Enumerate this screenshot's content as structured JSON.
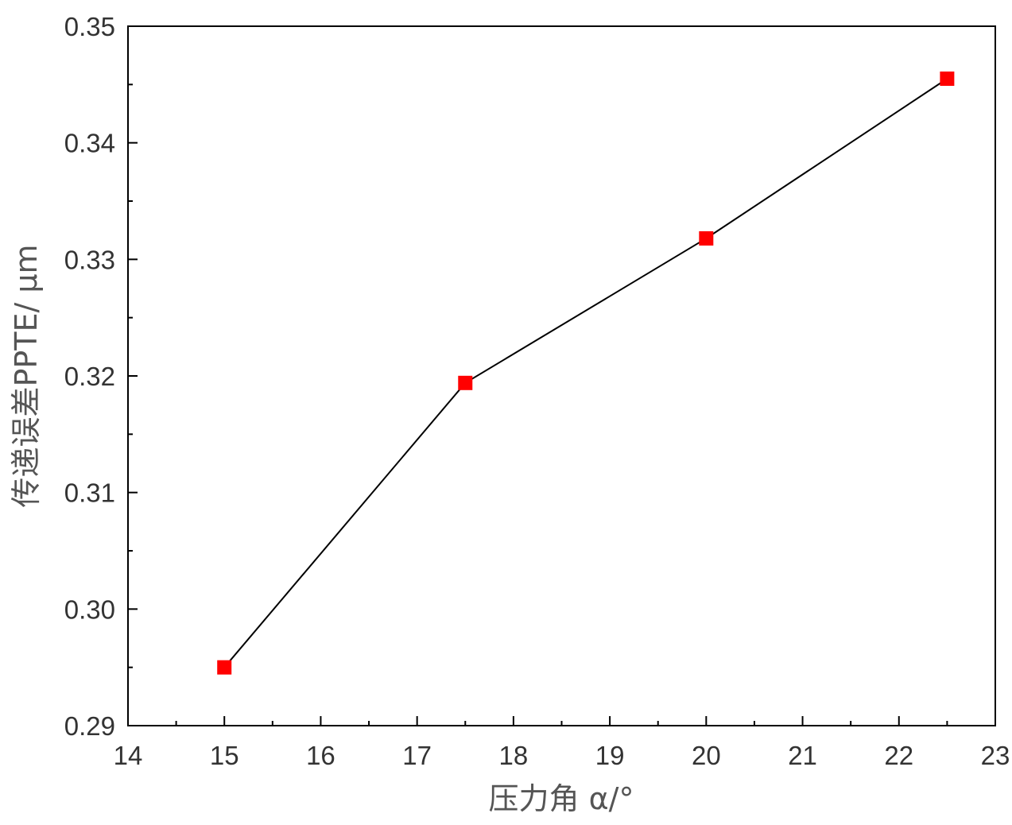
{
  "chart_data": {
    "type": "line",
    "title": "",
    "xlabel": "压力角 α/°",
    "ylabel": "传递误差PPTE/ μm",
    "xlim": [
      14,
      23
    ],
    "ylim": [
      0.29,
      0.35
    ],
    "x_ticks": [
      14,
      15,
      16,
      17,
      18,
      19,
      20,
      21,
      22,
      23
    ],
    "y_ticks": [
      "0.29",
      "0.30",
      "0.31",
      "0.32",
      "0.33",
      "0.34",
      "0.35"
    ],
    "grid": false,
    "legend": "none",
    "series": [
      {
        "x": [
          15,
          17.5,
          20,
          22.5
        ],
        "y": [
          0.295,
          0.3194,
          0.3318,
          0.3455
        ],
        "line_color": "#000000",
        "marker": "square",
        "marker_color": "#ff0000"
      }
    ]
  }
}
